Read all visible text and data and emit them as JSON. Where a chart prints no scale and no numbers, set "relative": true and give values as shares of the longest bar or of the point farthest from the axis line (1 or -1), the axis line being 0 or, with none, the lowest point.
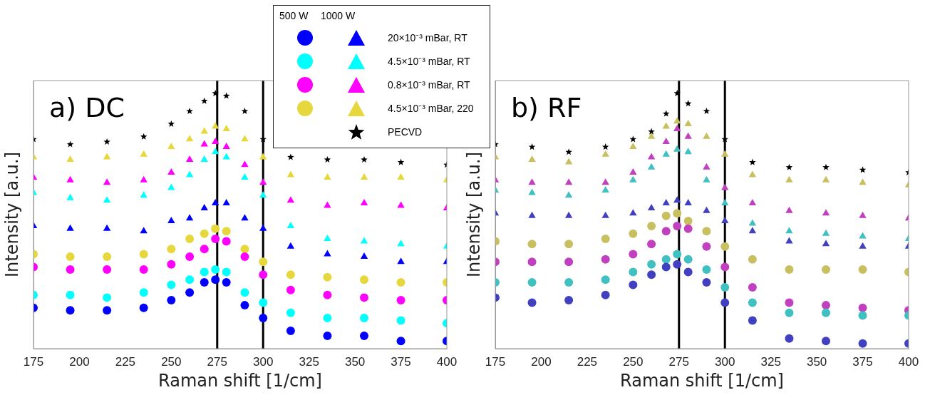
{
  "chart_data": [
    {
      "type": "scatter",
      "title": "a) DC",
      "xlabel": "Raman shift [1/cm]",
      "ylabel": "Intensity [a.u.]",
      "relative": true,
      "xlim": [
        175,
        400
      ],
      "xticks": [
        175,
        200,
        225,
        250,
        275,
        300,
        325,
        350,
        375,
        400
      ],
      "tick_labels": "x",
      "legend": "top right",
      "annotations": [
        "500 W",
        "1000 W"
      ],
      "ref_lines": [
        {
          "axis": "x",
          "value": 275,
          "color": "#000000"
        },
        {
          "axis": "x",
          "value": 300,
          "color": "#000000"
        }
      ],
      "x": [
        175,
        195,
        215,
        235,
        250,
        260,
        268,
        274,
        280,
        290,
        300,
        315,
        335,
        355,
        375,
        400
      ],
      "series": [
        {
          "marker": "circle",
          "color": "#0000ff",
          "values": [
            0.16,
            0.15,
            0.15,
            0.16,
            0.19,
            0.22,
            0.26,
            0.27,
            0.26,
            0.17,
            0.12,
            0.07,
            0.05,
            0.05,
            0.03,
            0.03
          ]
        },
        {
          "name": "20×10⁻³ mBar, RT",
          "marker": "triangle",
          "color": "#0000ff",
          "values": [
            0.48,
            0.47,
            0.47,
            0.46,
            0.5,
            0.51,
            0.55,
            0.57,
            0.57,
            0.51,
            0.47,
            0.4,
            0.37,
            0.36,
            0.34,
            0.34
          ]
        },
        {
          "marker": "circle",
          "color": "#00ffff",
          "values": [
            0.21,
            0.21,
            0.2,
            0.22,
            0.25,
            0.27,
            0.3,
            0.31,
            0.3,
            0.22,
            0.18,
            0.14,
            0.12,
            0.12,
            0.11,
            0.1
          ]
        },
        {
          "name": "4.5×10⁻³ mBar, RT",
          "marker": "triangle",
          "color": "#00ffff",
          "values": [
            0.61,
            0.59,
            0.58,
            0.6,
            0.63,
            0.68,
            0.74,
            0.77,
            0.75,
            0.67,
            0.6,
            0.48,
            0.43,
            0.42,
            0.41,
            0.4
          ]
        },
        {
          "marker": "circle",
          "color": "#ff00ff",
          "values": [
            0.32,
            0.31,
            0.31,
            0.31,
            0.33,
            0.36,
            0.39,
            0.43,
            0.42,
            0.36,
            0.29,
            0.23,
            0.21,
            0.2,
            0.19,
            0.19
          ]
        },
        {
          "name": "0.8×10⁻³ mBar, RT",
          "marker": "triangle",
          "color": "#ff00ff",
          "values": [
            0.67,
            0.66,
            0.65,
            0.66,
            0.69,
            0.74,
            0.8,
            0.81,
            0.79,
            0.72,
            0.65,
            0.58,
            0.56,
            0.57,
            0.56,
            0.55
          ]
        },
        {
          "marker": "circle",
          "color": "#e6d83c",
          "values": [
            0.37,
            0.36,
            0.36,
            0.37,
            0.39,
            0.43,
            0.45,
            0.47,
            0.46,
            0.39,
            0.34,
            0.29,
            0.28,
            0.27,
            0.26,
            0.26
          ]
        },
        {
          "name": "4.5×10⁻³ mBar, 220",
          "marker": "triangle",
          "color": "#e6d83c",
          "values": [
            0.75,
            0.74,
            0.75,
            0.76,
            0.79,
            0.82,
            0.85,
            0.87,
            0.86,
            0.82,
            0.75,
            0.68,
            0.67,
            0.67,
            0.67,
            0.66
          ]
        },
        {
          "name": "PECVD",
          "marker": "star",
          "color": "#000000",
          "values": [
            0.82,
            0.8,
            0.81,
            0.83,
            0.88,
            0.93,
            0.97,
            1.0,
            0.99,
            0.93,
            0.82,
            0.75,
            0.74,
            0.74,
            0.73,
            0.72
          ]
        }
      ]
    },
    {
      "type": "scatter",
      "title": "b) RF",
      "xlabel": "Raman shift [1/cm]",
      "ylabel": "Intensity [a.u.]",
      "relative": true,
      "xlim": [
        175,
        400
      ],
      "xticks": [
        175,
        200,
        225,
        250,
        275,
        300,
        325,
        350,
        375,
        400
      ],
      "tick_labels": "x",
      "ref_lines": [
        {
          "axis": "x",
          "value": 275,
          "color": "#000000"
        },
        {
          "axis": "x",
          "value": 300,
          "color": "#000000"
        }
      ],
      "x": [
        175,
        195,
        215,
        235,
        250,
        260,
        268,
        274,
        280,
        290,
        300,
        315,
        335,
        355,
        375,
        400
      ],
      "series": [
        {
          "marker": "circle",
          "color": "#4040c0",
          "values": [
            0.2,
            0.18,
            0.19,
            0.21,
            0.25,
            0.29,
            0.32,
            0.33,
            0.3,
            0.26,
            0.18,
            0.11,
            0.04,
            0.03,
            0.02,
            0.02
          ]
        },
        {
          "marker": "triangle",
          "color": "#4040c0",
          "values": [
            0.53,
            0.52,
            0.52,
            0.52,
            0.53,
            0.55,
            0.57,
            0.58,
            0.57,
            0.54,
            0.5,
            0.46,
            0.42,
            0.41,
            0.4,
            0.4
          ]
        },
        {
          "marker": "circle",
          "color": "#40c0c0",
          "values": [
            0.26,
            0.26,
            0.26,
            0.27,
            0.3,
            0.33,
            0.35,
            0.37,
            0.35,
            0.31,
            0.24,
            0.18,
            0.14,
            0.14,
            0.13,
            0.13
          ]
        },
        {
          "marker": "triangle",
          "color": "#40c0c0",
          "values": [
            0.62,
            0.61,
            0.6,
            0.62,
            0.66,
            0.71,
            0.76,
            0.78,
            0.77,
            0.66,
            0.57,
            0.49,
            0.46,
            0.45,
            0.44,
            0.43
          ]
        },
        {
          "marker": "circle",
          "color": "#c040c0",
          "values": [
            0.34,
            0.34,
            0.34,
            0.35,
            0.37,
            0.41,
            0.46,
            0.48,
            0.47,
            0.4,
            0.32,
            0.24,
            0.18,
            0.17,
            0.16,
            0.15
          ]
        },
        {
          "marker": "triangle",
          "color": "#c040c0",
          "values": [
            0.66,
            0.65,
            0.65,
            0.65,
            0.69,
            0.75,
            0.81,
            0.86,
            0.83,
            0.71,
            0.63,
            0.57,
            0.54,
            0.53,
            0.52,
            0.51
          ]
        },
        {
          "marker": "circle",
          "color": "#c8c060",
          "values": [
            0.42,
            0.41,
            0.41,
            0.43,
            0.45,
            0.48,
            0.52,
            0.53,
            0.5,
            0.46,
            0.4,
            0.35,
            0.31,
            0.31,
            0.31,
            0.3
          ]
        },
        {
          "marker": "triangle",
          "color": "#c8c060",
          "values": [
            0.75,
            0.74,
            0.73,
            0.76,
            0.79,
            0.83,
            0.87,
            0.89,
            0.88,
            0.83,
            0.76,
            0.68,
            0.66,
            0.66,
            0.65,
            0.64
          ]
        },
        {
          "marker": "star",
          "color": "#000000",
          "values": [
            0.8,
            0.79,
            0.77,
            0.79,
            0.82,
            0.85,
            0.92,
            1.0,
            0.96,
            0.93,
            0.82,
            0.73,
            0.71,
            0.71,
            0.7,
            0.69
          ]
        }
      ]
    }
  ]
}
